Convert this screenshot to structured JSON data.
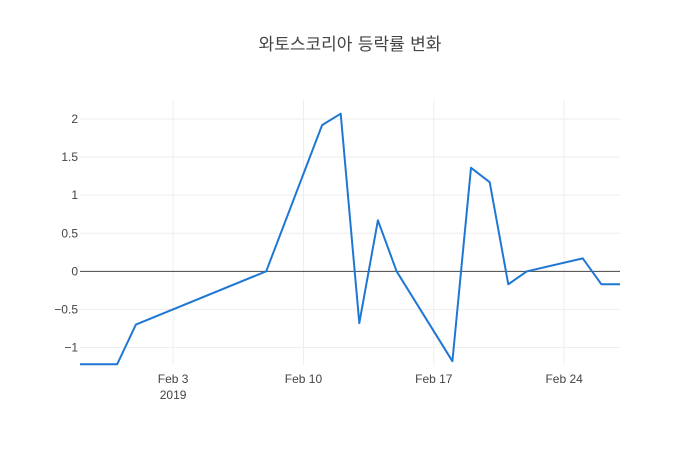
{
  "chart_data": {
    "type": "line",
    "title": "와토스코리아 등락률 변화",
    "xlabel": "",
    "ylabel": "",
    "x_tick_labels": [
      "Feb 3",
      "Feb 10",
      "Feb 17",
      "Feb 24"
    ],
    "x_tick_dates": [
      "2019-02-03",
      "2019-02-10",
      "2019-02-17",
      "2019-02-24"
    ],
    "x_year_label": "2019",
    "y_tick_labels": [
      "−1",
      "−0.5",
      "0",
      "0.5",
      "1",
      "1.5",
      "2"
    ],
    "y_tick_values": [
      -1,
      -0.5,
      0,
      0.5,
      1,
      1.5,
      2
    ],
    "xlim": [
      "2019-01-29",
      "2019-02-27"
    ],
    "ylim": [
      -1.23,
      2.25
    ],
    "grid": true,
    "zero_line": true,
    "color": "#1f77d4",
    "series": [
      {
        "x": [
          "2019-01-29",
          "2019-01-30",
          "2019-01-31",
          "2019-02-01",
          "2019-02-08",
          "2019-02-11",
          "2019-02-12",
          "2019-02-13",
          "2019-02-14",
          "2019-02-15",
          "2019-02-18",
          "2019-02-19",
          "2019-02-20",
          "2019-02-21",
          "2019-02-22",
          "2019-02-25",
          "2019-02-26",
          "2019-02-27"
        ],
        "y": [
          -1.22,
          -1.22,
          -1.22,
          -0.7,
          0.0,
          1.92,
          2.07,
          -0.68,
          0.67,
          0.0,
          -1.18,
          1.36,
          1.17,
          -0.17,
          0.0,
          0.17,
          -0.17,
          -0.17
        ]
      }
    ]
  }
}
